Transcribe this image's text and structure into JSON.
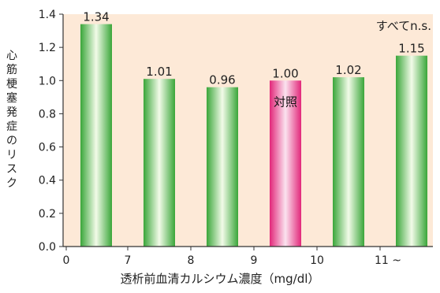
{
  "chart_data": {
    "type": "bar",
    "categories": [
      "0-7",
      "7-8",
      "8-9",
      "9-10",
      "10-11",
      "11~"
    ],
    "values": [
      1.34,
      1.01,
      0.96,
      1.0,
      1.02,
      1.15
    ],
    "value_labels": [
      "1.34",
      "1.01",
      "0.96",
      "1.00",
      "1.02",
      "1.15"
    ],
    "x_tick_labels": [
      "0",
      "7",
      "8",
      "9",
      "10",
      "11 ~"
    ],
    "y_tick_labels": [
      "0.0",
      "0.2",
      "0.4",
      "0.6",
      "0.8",
      "1.0",
      "1.2",
      "1.4"
    ],
    "ylim": [
      0,
      1.4
    ],
    "xlabel": "透析前血清カルシウム濃度（mg/dl）",
    "ylabel": "心筋梗塞発症のリスク",
    "reference_label": "対照",
    "reference_index": 3,
    "annotation": "すべてn.s.",
    "grid": false,
    "colors": {
      "plot_background": "#fde9d7",
      "bar_green": "#3aa63a",
      "bar_green_light": "#f2fbe8",
      "bar_pink": "#e2277a",
      "bar_pink_light": "#fbe3ef",
      "axis": "#333333"
    }
  }
}
